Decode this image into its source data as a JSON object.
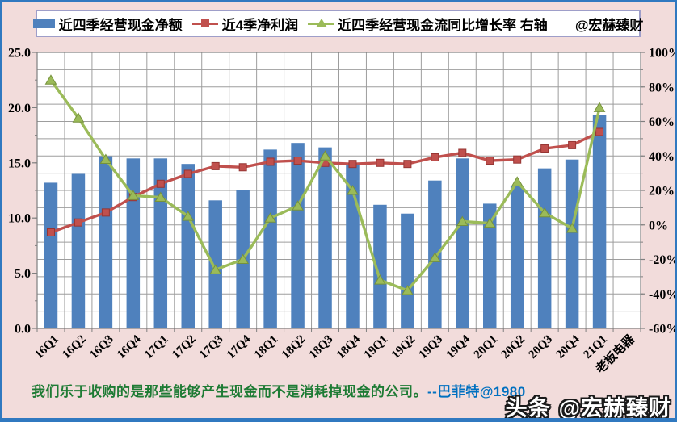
{
  "legend": {
    "items": [
      {
        "label": "近四季经营现金净额",
        "type": "bar"
      },
      {
        "label": "近4季净利润",
        "type": "line-square"
      },
      {
        "label": "近四季经营现金流同比增长率 右轴",
        "type": "line-triangle"
      }
    ],
    "watermark": "@宏赫臻财"
  },
  "chart_data": {
    "type": "combo-bar-line",
    "categories": [
      "16Q1",
      "16Q2",
      "16Q3",
      "16Q4",
      "17Q1",
      "17Q2",
      "17Q3",
      "17Q4",
      "18Q1",
      "18Q2",
      "18Q3",
      "18Q4",
      "19Q1",
      "19Q2",
      "19Q3",
      "19Q4",
      "20Q1",
      "20Q2",
      "20Q3",
      "20Q4",
      "21Q1"
    ],
    "extra_category": "老板电器",
    "series": [
      {
        "name": "近四季经营现金净额",
        "type": "bar",
        "axis": "left",
        "color": "#4f81bd",
        "values": [
          13.2,
          14.0,
          15.6,
          15.4,
          15.4,
          14.9,
          11.6,
          12.5,
          16.2,
          16.8,
          16.4,
          15.0,
          11.2,
          10.4,
          13.4,
          15.4,
          11.3,
          12.9,
          14.5,
          15.3,
          19.3
        ]
      },
      {
        "name": "近4季净利润",
        "type": "line",
        "marker": "square",
        "axis": "left",
        "color": "#c0504d",
        "marker_stroke": "#963634",
        "values": [
          8.7,
          9.6,
          10.5,
          11.9,
          13.1,
          14.0,
          14.7,
          14.6,
          15.1,
          15.2,
          15.0,
          14.9,
          15.0,
          14.9,
          15.5,
          15.9,
          15.2,
          15.3,
          16.3,
          16.6,
          17.8
        ]
      },
      {
        "name": "近四季经营现金流同比增长率",
        "type": "line",
        "marker": "triangle",
        "axis": "right",
        "color": "#9bbb59",
        "marker_stroke": "#76923c",
        "values": [
          84,
          62,
          38,
          17,
          16,
          5,
          -26,
          -20,
          4,
          11,
          40,
          20,
          -32,
          -38,
          -19,
          2,
          1,
          25,
          7,
          -2,
          68
        ]
      }
    ],
    "left_axis": {
      "min": 0,
      "max": 25,
      "tick_step": 5,
      "minor_step": 2.5,
      "tick_labels": [
        "25.0",
        "20.0",
        "15.0",
        "10.0",
        "5.0",
        "0.0"
      ]
    },
    "right_axis": {
      "min": -60,
      "max": 100,
      "tick_step": 20,
      "minor_step": 10,
      "tick_labels": [
        "100%",
        "80%",
        "60%",
        "40%",
        "20%",
        "0%",
        "-20%",
        "-40%",
        "-60%"
      ]
    },
    "grid": true,
    "legend_position": "top"
  },
  "footer": {
    "quote": "我们乐于收购的是那些能够产生现金而不是消耗掉现金的公司。",
    "attribution": "--巴菲特@1980"
  },
  "branding": {
    "site": "头条",
    "handle": "@宏赫臻财"
  },
  "colors": {
    "background": "#f2dcdb",
    "frame_border": "#3079c0",
    "legend_border": "#9e9ec9",
    "plot_background": "#ffffff",
    "gridline": "#9d9d9d",
    "plot_border": "#7f7f7f",
    "bar": "#4f81bd",
    "profit_line": "#c0504d",
    "growth_line": "#9bbb59",
    "axis_text": "#000000",
    "quote_green": "#1e7b34",
    "quote_blue": "#0070c0",
    "watermark_text": "#ffffff"
  }
}
